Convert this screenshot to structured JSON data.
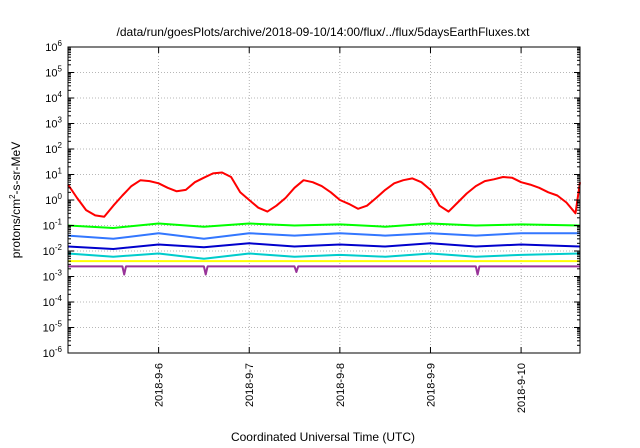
{
  "chart_data": {
    "type": "line",
    "title": "/data/run/goesPlots/archive/2018-09-10/14:00/flux/../flux/5daysEarthFluxes.txt",
    "xlabel": "Coordinated Universal Time (UTC)",
    "ylabel": {
      "pre": "protons/cm",
      "sup": "2",
      "post": "-s-sr-MeV"
    },
    "x_range_days": [
      0,
      5.65
    ],
    "x_ticks": [
      {
        "label": "2018-9-6",
        "day": 1
      },
      {
        "label": "2018-9-7",
        "day": 2
      },
      {
        "label": "2018-9-8",
        "day": 3
      },
      {
        "label": "2018-9-9",
        "day": 4
      },
      {
        "label": "2018-9-10",
        "day": 5
      }
    ],
    "y_scale": "log",
    "y_range": [
      1e-06,
      1000000.0
    ],
    "y_ticks": [
      {
        "base": "10",
        "exp": "6"
      },
      {
        "base": "10",
        "exp": "5"
      },
      {
        "base": "10",
        "exp": "4"
      },
      {
        "base": "10",
        "exp": "3"
      },
      {
        "base": "10",
        "exp": "2"
      },
      {
        "base": "10",
        "exp": "1"
      },
      {
        "base": "10",
        "exp": "0"
      },
      {
        "base": "10",
        "exp": "-1"
      },
      {
        "base": "10",
        "exp": "-2"
      },
      {
        "base": "10",
        "exp": "-3"
      },
      {
        "base": "10",
        "exp": "-4"
      },
      {
        "base": "10",
        "exp": "-5"
      },
      {
        "base": "10",
        "exp": "-6"
      }
    ],
    "grid": true,
    "series": [
      {
        "color": "#ffff00",
        "x": [
          0,
          1,
          2,
          3,
          4,
          5,
          5.65
        ],
        "y": [
          0.004,
          0.004,
          0.004,
          0.004,
          0.004,
          0.004,
          0.004
        ]
      },
      {
        "color": "#993399",
        "x": [
          0,
          0.6,
          0.62,
          0.64,
          1,
          1.5,
          1.52,
          1.54,
          2,
          2.5,
          2.52,
          2.54,
          3,
          4,
          4.5,
          4.52,
          4.54,
          5,
          5.65
        ],
        "y": [
          0.0025,
          0.0025,
          0.0012,
          0.0025,
          0.0025,
          0.0025,
          0.0012,
          0.0025,
          0.0025,
          0.0025,
          0.0015,
          0.0025,
          0.0025,
          0.0025,
          0.0025,
          0.0012,
          0.0025,
          0.0025,
          0.0025
        ]
      },
      {
        "color": "#00cccc",
        "x": [
          0,
          0.5,
          1,
          1.5,
          2,
          2.5,
          3,
          3.5,
          4,
          4.5,
          5,
          5.65
        ],
        "y": [
          0.008,
          0.006,
          0.008,
          0.005,
          0.008,
          0.006,
          0.007,
          0.006,
          0.008,
          0.006,
          0.007,
          0.008
        ]
      },
      {
        "color": "#0000cc",
        "x": [
          0,
          0.5,
          1,
          1.5,
          2,
          2.5,
          3,
          3.5,
          4,
          4.5,
          5,
          5.65
        ],
        "y": [
          0.015,
          0.012,
          0.018,
          0.014,
          0.02,
          0.015,
          0.018,
          0.015,
          0.02,
          0.015,
          0.018,
          0.015
        ]
      },
      {
        "color": "#3377ff",
        "x": [
          0,
          0.5,
          1,
          1.5,
          2,
          2.5,
          3,
          3.5,
          4,
          4.5,
          5,
          5.65
        ],
        "y": [
          0.04,
          0.03,
          0.05,
          0.03,
          0.05,
          0.04,
          0.05,
          0.04,
          0.05,
          0.04,
          0.05,
          0.05
        ]
      },
      {
        "color": "#00ff00",
        "x": [
          0,
          0.5,
          1,
          1.5,
          2,
          2.5,
          3,
          3.5,
          4,
          4.5,
          5,
          5.65
        ],
        "y": [
          0.1,
          0.08,
          0.12,
          0.09,
          0.12,
          0.1,
          0.11,
          0.09,
          0.12,
          0.1,
          0.11,
          0.1
        ]
      },
      {
        "color": "#ff0000",
        "x": [
          0,
          0.1,
          0.2,
          0.3,
          0.4,
          0.5,
          0.6,
          0.7,
          0.8,
          0.9,
          1.0,
          1.1,
          1.2,
          1.3,
          1.4,
          1.5,
          1.6,
          1.7,
          1.8,
          1.9,
          2.0,
          2.1,
          2.2,
          2.3,
          2.4,
          2.5,
          2.6,
          2.7,
          2.8,
          2.9,
          3.0,
          3.1,
          3.2,
          3.3,
          3.4,
          3.5,
          3.6,
          3.7,
          3.8,
          3.9,
          4.0,
          4.1,
          4.2,
          4.3,
          4.4,
          4.5,
          4.6,
          4.7,
          4.8,
          4.9,
          5.0,
          5.1,
          5.2,
          5.3,
          5.4,
          5.5,
          5.6,
          5.65
        ],
        "y": [
          4,
          1.2,
          0.4,
          0.25,
          0.22,
          0.6,
          1.5,
          3.5,
          6,
          5.5,
          4.5,
          3,
          2.2,
          2.5,
          5,
          7.5,
          11,
          12,
          8,
          2,
          1,
          0.5,
          0.35,
          0.6,
          1.2,
          3,
          6,
          5,
          3.5,
          2,
          1,
          0.7,
          0.45,
          0.6,
          1.2,
          2.5,
          4.5,
          6,
          7,
          5,
          2.5,
          0.6,
          0.35,
          0.8,
          1.8,
          3.5,
          5.5,
          6.5,
          8,
          7.5,
          5,
          4,
          3,
          2,
          1.5,
          0.8,
          0.3,
          5
        ]
      }
    ]
  }
}
